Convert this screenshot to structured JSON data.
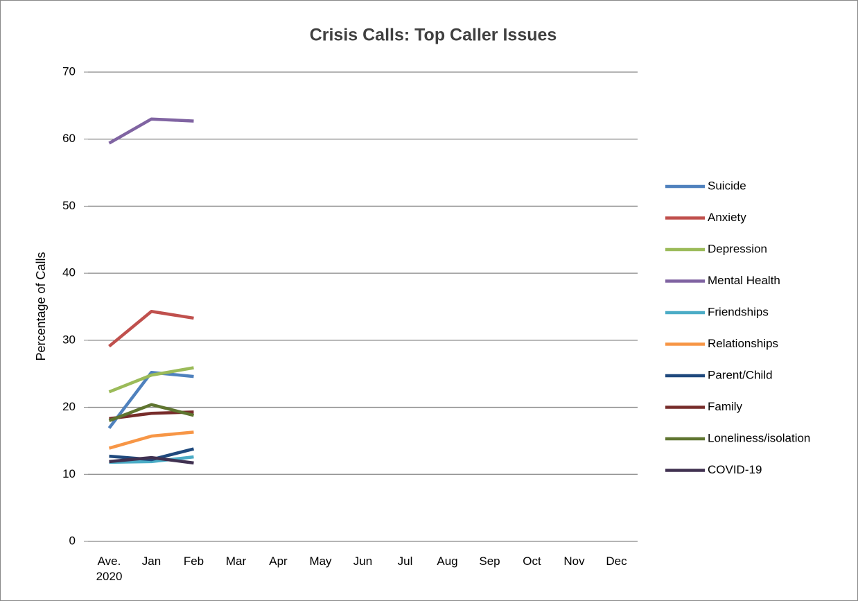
{
  "chart_data": {
    "type": "line",
    "title": "Crisis Calls: Top Caller Issues",
    "y_label": "Percentage of Calls",
    "categories": [
      "Ave. 2020",
      "Jan",
      "Feb",
      "Mar",
      "Apr",
      "May",
      "Jun",
      "Jul",
      "Aug",
      "Sep",
      "Oct",
      "Nov",
      "Dec"
    ],
    "series": [
      {
        "name": "Suicide",
        "color": "#4f81bd",
        "values": [
          16.9,
          25.2,
          24.6,
          null,
          null,
          null,
          null,
          null,
          null,
          null,
          null,
          null,
          null
        ]
      },
      {
        "name": "Anxiety",
        "color": "#c0504d",
        "values": [
          29.1,
          34.3,
          33.3,
          null,
          null,
          null,
          null,
          null,
          null,
          null,
          null,
          null,
          null
        ]
      },
      {
        "name": "Depression",
        "color": "#9bbb59",
        "values": [
          22.3,
          24.8,
          25.9,
          null,
          null,
          null,
          null,
          null,
          null,
          null,
          null,
          null,
          null
        ]
      },
      {
        "name": "Mental Health",
        "color": "#8064a2",
        "values": [
          59.4,
          63.0,
          62.7,
          null,
          null,
          null,
          null,
          null,
          null,
          null,
          null,
          null,
          null
        ]
      },
      {
        "name": "Friendships",
        "color": "#4bacc6",
        "values": [
          11.8,
          11.9,
          12.6,
          null,
          null,
          null,
          null,
          null,
          null,
          null,
          null,
          null,
          null
        ]
      },
      {
        "name": "Relationships",
        "color": "#f79646",
        "values": [
          13.9,
          15.7,
          16.3,
          null,
          null,
          null,
          null,
          null,
          null,
          null,
          null,
          null,
          null
        ]
      },
      {
        "name": "Parent/Child",
        "color": "#1f497d",
        "values": [
          12.7,
          12.2,
          13.8,
          null,
          null,
          null,
          null,
          null,
          null,
          null,
          null,
          null,
          null
        ]
      },
      {
        "name": "Family",
        "color": "#772c2a",
        "values": [
          18.3,
          19.1,
          19.3,
          null,
          null,
          null,
          null,
          null,
          null,
          null,
          null,
          null,
          null
        ]
      },
      {
        "name": "Loneliness/isolation",
        "color": "#5f7530",
        "values": [
          18.0,
          20.4,
          18.8,
          null,
          null,
          null,
          null,
          null,
          null,
          null,
          null,
          null,
          null
        ]
      },
      {
        "name": "COVID-19",
        "color": "#403151",
        "values": [
          11.9,
          12.5,
          11.7,
          null,
          null,
          null,
          null,
          null,
          null,
          null,
          null,
          null,
          null
        ]
      }
    ],
    "ylim": [
      0,
      70
    ],
    "yticks": [
      0,
      10,
      20,
      30,
      40,
      50,
      60,
      70
    ],
    "grid": true,
    "legend": "right"
  }
}
